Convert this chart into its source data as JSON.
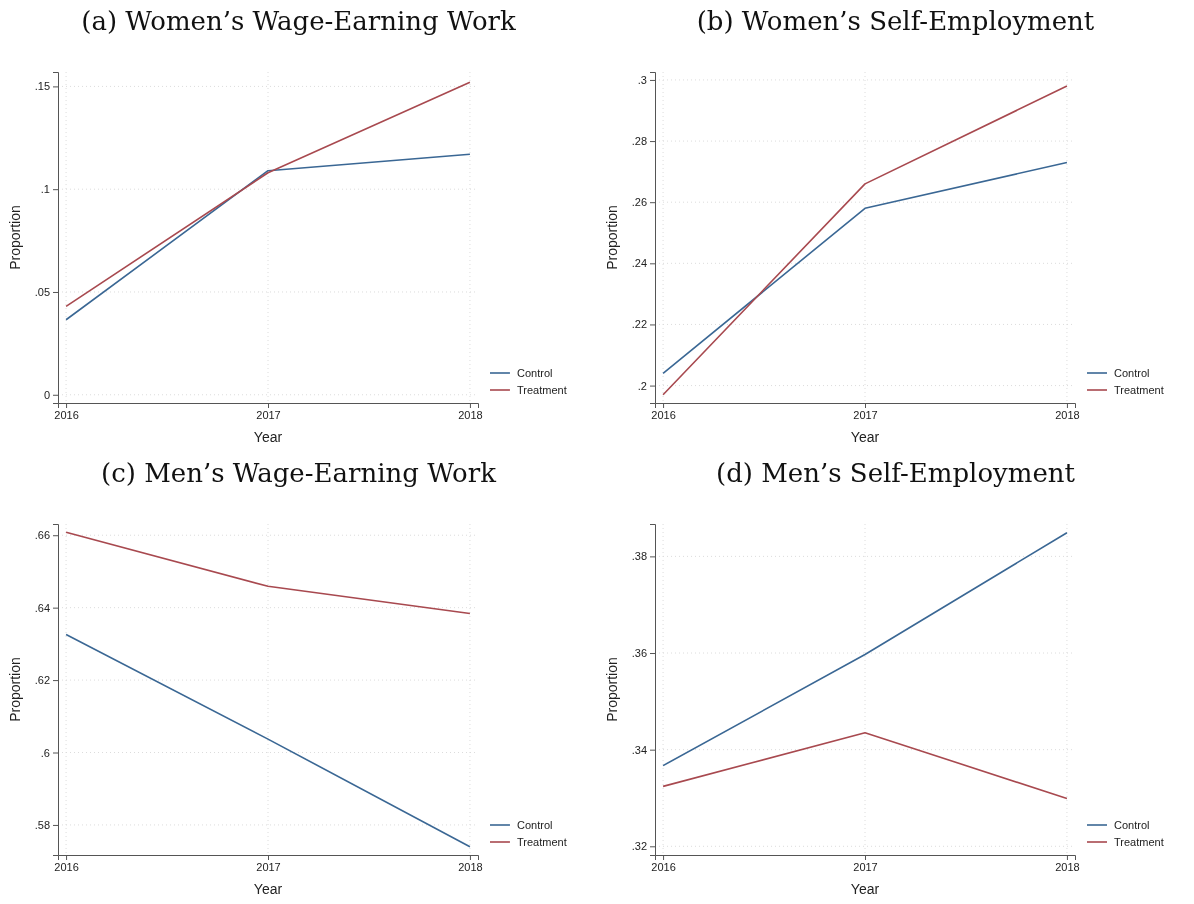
{
  "chart_data": [
    {
      "type": "line",
      "title": "(a) Women’s Wage-Earning Work",
      "xlabel": "Year",
      "ylabel": "Proportion",
      "x": [
        2016,
        2017,
        2018
      ],
      "xlim": [
        2015.96,
        2018.04
      ],
      "xticks": [
        2016,
        2017,
        2018
      ],
      "ylim": [
        -0.004,
        0.157
      ],
      "yticks": [
        0,
        {
          "value": 0.05,
          "label": ".05"
        },
        {
          "value": 0.1,
          "label": ".1"
        },
        {
          "value": 0.15,
          "label": ".15"
        }
      ],
      "grid": true,
      "legend": "right",
      "line_style": "solid",
      "series": [
        {
          "name": "Control",
          "color": "#3a6794",
          "values": [
            0.0365,
            0.109,
            0.117
          ]
        },
        {
          "name": "Treatment",
          "color": "#a8494f",
          "values": [
            0.043,
            0.108,
            0.152
          ]
        }
      ]
    },
    {
      "type": "line",
      "title": "(b) Women’s Self-Employment",
      "xlabel": "Year",
      "ylabel": "Proportion",
      "x": [
        2016,
        2017,
        2018
      ],
      "xlim": [
        2015.96,
        2018.04
      ],
      "xticks": [
        2016,
        2017,
        2018
      ],
      "ylim": [
        0.1943,
        0.3026
      ],
      "yticks": [
        {
          "value": 0.2,
          "label": ".2"
        },
        {
          "value": 0.22,
          "label": ".22"
        },
        {
          "value": 0.24,
          "label": ".24"
        },
        {
          "value": 0.26,
          "label": ".26"
        },
        {
          "value": 0.28,
          "label": ".28"
        },
        {
          "value": 0.3,
          "label": ".3"
        }
      ],
      "grid": true,
      "legend": "right",
      "line_style": "solid",
      "series": [
        {
          "name": "Control",
          "color": "#3a6794",
          "values": [
            0.204,
            0.258,
            0.273
          ]
        },
        {
          "name": "Treatment",
          "color": "#a8494f",
          "values": [
            0.197,
            0.266,
            0.298
          ]
        }
      ]
    },
    {
      "type": "line",
      "title": "(c) Men’s Wage-Earning Work",
      "xlabel": "Year",
      "ylabel": "Proportion",
      "x": [
        2016,
        2017,
        2018
      ],
      "xlim": [
        2015.96,
        2018.04
      ],
      "xticks": [
        2016,
        2017,
        2018
      ],
      "ylim": [
        0.5717,
        0.6631
      ],
      "yticks": [
        {
          "value": 0.58,
          "label": ".58"
        },
        {
          "value": 0.6,
          "label": ".6"
        },
        {
          "value": 0.62,
          "label": ".62"
        },
        {
          "value": 0.64,
          "label": ".64"
        },
        {
          "value": 0.66,
          "label": ".66"
        }
      ],
      "grid": true,
      "legend": "right",
      "line_style": "solid",
      "series": [
        {
          "name": "Control",
          "color": "#3a6794",
          "values": [
            0.6326,
            0.6037,
            0.574
          ]
        },
        {
          "name": "Treatment",
          "color": "#a8494f",
          "values": [
            0.6608,
            0.6459,
            0.6384
          ]
        }
      ]
    },
    {
      "type": "line",
      "title": "(d) Men’s Self-Employment",
      "xlabel": "Year",
      "ylabel": "Proportion",
      "x": [
        2016,
        2017,
        2018
      ],
      "xlim": [
        2015.96,
        2018.04
      ],
      "xticks": [
        2016,
        2017,
        2018
      ],
      "ylim": [
        0.3182,
        0.3867
      ],
      "yticks": [
        {
          "value": 0.32,
          "label": ".32"
        },
        {
          "value": 0.34,
          "label": ".34"
        },
        {
          "value": 0.36,
          "label": ".36"
        },
        {
          "value": 0.38,
          "label": ".38"
        }
      ],
      "grid": true,
      "legend": "right",
      "line_style": "solid",
      "series": [
        {
          "name": "Control",
          "color": "#3a6794",
          "values": [
            0.3367,
            0.3597,
            0.3849
          ]
        },
        {
          "name": "Treatment",
          "color": "#a8494f",
          "values": [
            0.3324,
            0.3435,
            0.3299
          ]
        }
      ]
    }
  ]
}
